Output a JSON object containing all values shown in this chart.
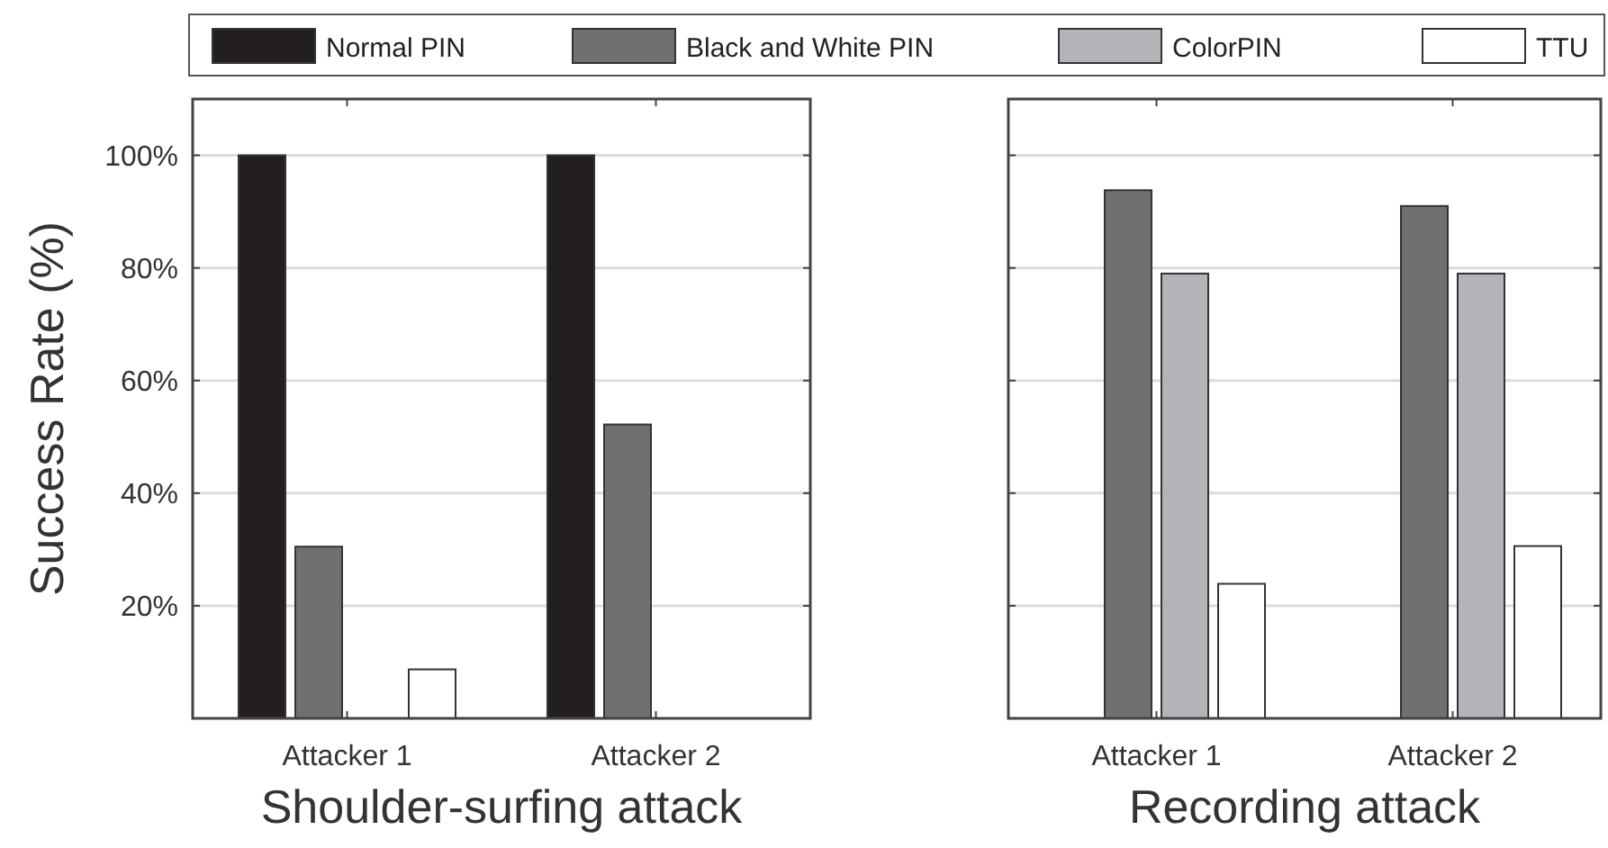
{
  "chart_data": [
    {
      "type": "bar",
      "xlabel": "Shoulder-surfing attack",
      "ylabel": "Success Rate (%)",
      "categories": [
        "Attacker 1",
        "Attacker 2"
      ],
      "series": [
        {
          "name": "Normal PIN",
          "color": "#231f20",
          "values": [
            100,
            100
          ]
        },
        {
          "name": "Black and White PIN",
          "color": "#707073",
          "values": [
            30.5,
            52.2
          ]
        },
        {
          "name": "ColorPIN",
          "color": "#b3b4b7",
          "values": [
            null,
            null
          ]
        },
        {
          "name": "TTU",
          "color": "#ffffff",
          "values": [
            8.7,
            null
          ]
        }
      ],
      "ylim": [
        0,
        110
      ],
      "yticks": [
        {
          "value": 20,
          "label": "20%"
        },
        {
          "value": 40,
          "label": "40%"
        },
        {
          "value": 60,
          "label": "60%"
        },
        {
          "value": 80,
          "label": "80%"
        },
        {
          "value": 100,
          "label": "100%"
        }
      ],
      "grid": "y",
      "legend": "top"
    },
    {
      "type": "bar",
      "xlabel": "Recording attack",
      "categories": [
        "Attacker 1",
        "Attacker 2"
      ],
      "series": [
        {
          "values": [
            null,
            null
          ]
        },
        {
          "color": "#707073",
          "values": [
            93.8,
            91
          ]
        },
        {
          "color": "#b3b4b7",
          "values": [
            79,
            79
          ]
        },
        {
          "color": "#ffffff",
          "values": [
            23.9,
            30.6
          ]
        }
      ],
      "ylim": [
        0,
        110
      ],
      "yticks": [
        {
          "value": 20,
          "label": null
        },
        {
          "value": 40,
          "label": null
        },
        {
          "value": 60,
          "label": null
        },
        {
          "value": 80,
          "label": null
        },
        {
          "value": 100,
          "label": null
        }
      ],
      "grid": "y",
      "tick_labels": "x"
    }
  ]
}
